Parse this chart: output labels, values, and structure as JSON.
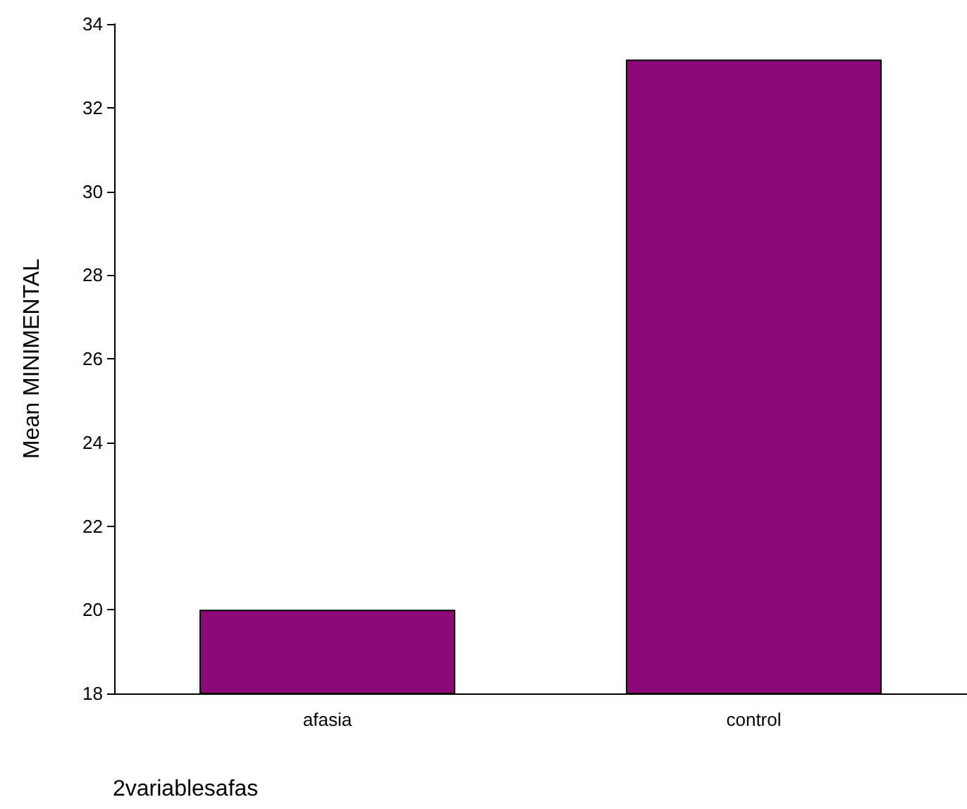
{
  "chart_data": {
    "type": "bar",
    "xlabel": "2variablesafas",
    "ylabel": "Mean MINIMENTAL",
    "categories": [
      "afasia",
      "control"
    ],
    "values": [
      20,
      33.15
    ],
    "color": "#8c0a78",
    "ylim": [
      18,
      34
    ],
    "yticks": [
      18,
      20,
      22,
      24,
      26,
      28,
      30,
      32,
      34
    ],
    "grid": false
  }
}
